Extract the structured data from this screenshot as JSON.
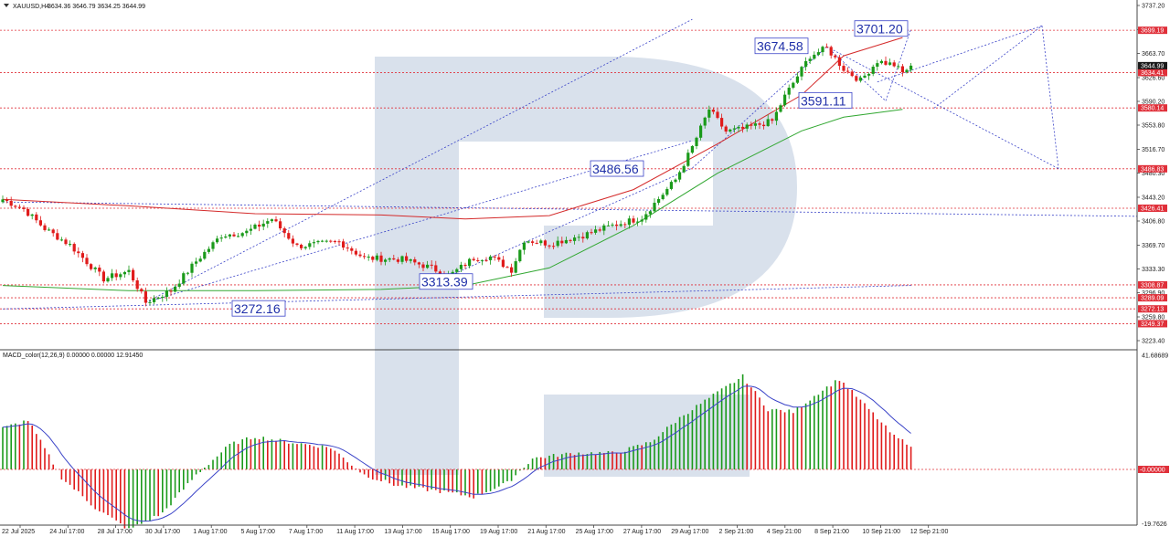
{
  "header": {
    "symbol": "XAUUSD,H4",
    "ohlc": "3634.36 3646.79 3634.25 3644.99"
  },
  "macd_header": "MACD_color(12,26,9) 0.00000 0.00000 12.91450",
  "colors": {
    "bull": "#1a9a1a",
    "bear": "#e01b1b",
    "level_line": "#e0303a",
    "forecast": "#3b44c8",
    "ma_red": "#d42a2a",
    "ma_green": "#33a833",
    "macd_signal": "#3b44c8",
    "price_tag": "#e0303a",
    "current_tag": "#1a1a1a",
    "watermark": "#b9c8dc"
  },
  "chart_data": {
    "type": "candlestick",
    "symbol": "XAUUSD",
    "timeframe": "H4",
    "x_labels": [
      "22 Jul 2025",
      "24 Jul 17:00",
      "28 Jul 17:00",
      "30 Jul 17:00",
      "1 Aug 17:00",
      "5 Aug 17:00",
      "7 Aug 17:00",
      "11 Aug 17:00",
      "13 Aug 17:00",
      "15 Aug 17:00",
      "19 Aug 17:00",
      "21 Aug 17:00",
      "25 Aug 17:00",
      "27 Aug 17:00",
      "29 Aug 17:00",
      "2 Sep 21:00",
      "4 Sep 21:00",
      "8 Sep 21:00",
      "10 Sep 21:00",
      "12 Sep 21:00"
    ],
    "y_ticks": [
      3737.2,
      3700.1,
      3663.7,
      3626.6,
      3590.2,
      3553.8,
      3516.7,
      3480.3,
      3443.2,
      3406.8,
      3369.7,
      3333.3,
      3296.9,
      3259.8,
      3223.4
    ],
    "ylim": [
      3200,
      3750
    ],
    "key_points": [
      {
        "i": 0,
        "close": 3440
      },
      {
        "i": 5,
        "close": 3425
      },
      {
        "i": 10,
        "close": 3395
      },
      {
        "i": 16,
        "close": 3370
      },
      {
        "i": 24,
        "close": 3318
      },
      {
        "i": 30,
        "close": 3330
      },
      {
        "i": 34,
        "close": 3282
      },
      {
        "i": 40,
        "close": 3300
      },
      {
        "i": 46,
        "close": 3345
      },
      {
        "i": 52,
        "close": 3385
      },
      {
        "i": 58,
        "close": 3390
      },
      {
        "i": 64,
        "close": 3410
      },
      {
        "i": 70,
        "close": 3368
      },
      {
        "i": 80,
        "close": 3375
      },
      {
        "i": 86,
        "close": 3350
      },
      {
        "i": 95,
        "close": 3348
      },
      {
        "i": 102,
        "close": 3335
      },
      {
        "i": 106,
        "close": 3322
      },
      {
        "i": 112,
        "close": 3350
      },
      {
        "i": 116,
        "close": 3352
      },
      {
        "i": 121,
        "close": 3332
      },
      {
        "i": 124,
        "close": 3378
      },
      {
        "i": 130,
        "close": 3372
      },
      {
        "i": 138,
        "close": 3385
      },
      {
        "i": 145,
        "close": 3400
      },
      {
        "i": 152,
        "close": 3412
      },
      {
        "i": 160,
        "close": 3470
      },
      {
        "i": 164,
        "close": 3520
      },
      {
        "i": 168,
        "close": 3578
      },
      {
        "i": 172,
        "close": 3544
      },
      {
        "i": 176,
        "close": 3548
      },
      {
        "i": 183,
        "close": 3560
      },
      {
        "i": 186,
        "close": 3598
      },
      {
        "i": 192,
        "close": 3660
      },
      {
        "i": 196,
        "close": 3672
      },
      {
        "i": 200,
        "close": 3640
      },
      {
        "i": 204,
        "close": 3622
      },
      {
        "i": 208,
        "close": 3652
      },
      {
        "i": 212,
        "close": 3646
      },
      {
        "i": 214,
        "close": 3634
      },
      {
        "i": 216,
        "close": 3644.99
      }
    ],
    "moving_averages": [
      {
        "color": "red",
        "points": [
          [
            0,
            3440
          ],
          [
            30,
            3430
          ],
          [
            60,
            3418
          ],
          [
            90,
            3416
          ],
          [
            110,
            3410
          ],
          [
            130,
            3415
          ],
          [
            150,
            3455
          ],
          [
            170,
            3525
          ],
          [
            190,
            3600
          ],
          [
            200,
            3660
          ],
          [
            214,
            3688
          ]
        ]
      },
      {
        "color": "green",
        "points": [
          [
            0,
            3308
          ],
          [
            30,
            3300
          ],
          [
            60,
            3300
          ],
          [
            90,
            3302
          ],
          [
            110,
            3308
          ],
          [
            130,
            3335
          ],
          [
            150,
            3400
          ],
          [
            170,
            3480
          ],
          [
            190,
            3545
          ],
          [
            200,
            3566
          ],
          [
            214,
            3578
          ]
        ]
      }
    ],
    "horizontal_levels": [
      {
        "value": 3699.19,
        "label": "3699.19"
      },
      {
        "value": 3634.41,
        "label": "3634.41"
      },
      {
        "value": 3580.14,
        "label": "3580.14"
      },
      {
        "value": 3486.83,
        "label": "3486.83"
      },
      {
        "value": 3426.41,
        "label": "3426.41"
      },
      {
        "value": 3308.87,
        "label": "3308.87"
      },
      {
        "value": 3289.09,
        "label": "3289.09"
      },
      {
        "value": 3272.13,
        "label": "3272.13"
      },
      {
        "value": 3249.37,
        "label": "3249.37"
      }
    ],
    "current_price": 3644.99,
    "annotations": [
      {
        "text": "3701.20",
        "value": 3701.2
      },
      {
        "text": "3674.58",
        "value": 3674.58
      },
      {
        "text": "3591.11",
        "value": 3591.11
      },
      {
        "text": "3486.56",
        "value": 3486.56
      },
      {
        "text": "3313.39",
        "value": 3313.39
      },
      {
        "text": "3272.16",
        "value": 3272.16
      }
    ],
    "macd": {
      "name": "MACD_color(12,26,9)",
      "ylim": [
        -27,
        43
      ],
      "y_ticks": [
        41.68689,
        -0.0,
        -19.7626
      ],
      "y_tick_labels": [
        "41.68689",
        "-0.00000",
        "-19.7626"
      ],
      "key_points": [
        {
          "i": 0,
          "v": 15
        },
        {
          "i": 6,
          "v": 18
        },
        {
          "i": 14,
          "v": -3
        },
        {
          "i": 22,
          "v": -14
        },
        {
          "i": 30,
          "v": -22
        },
        {
          "i": 38,
          "v": -16
        },
        {
          "i": 46,
          "v": -2
        },
        {
          "i": 54,
          "v": 9
        },
        {
          "i": 60,
          "v": 12
        },
        {
          "i": 68,
          "v": 10
        },
        {
          "i": 78,
          "v": 8
        },
        {
          "i": 86,
          "v": -2
        },
        {
          "i": 94,
          "v": -6
        },
        {
          "i": 104,
          "v": -8
        },
        {
          "i": 112,
          "v": -10
        },
        {
          "i": 120,
          "v": -5
        },
        {
          "i": 126,
          "v": 4
        },
        {
          "i": 136,
          "v": 6
        },
        {
          "i": 146,
          "v": 6
        },
        {
          "i": 154,
          "v": 10
        },
        {
          "i": 162,
          "v": 20
        },
        {
          "i": 170,
          "v": 28
        },
        {
          "i": 176,
          "v": 34
        },
        {
          "i": 182,
          "v": 22
        },
        {
          "i": 188,
          "v": 21
        },
        {
          "i": 194,
          "v": 28
        },
        {
          "i": 199,
          "v": 33
        },
        {
          "i": 206,
          "v": 22
        },
        {
          "i": 212,
          "v": 12
        },
        {
          "i": 216,
          "v": 9
        }
      ]
    }
  }
}
